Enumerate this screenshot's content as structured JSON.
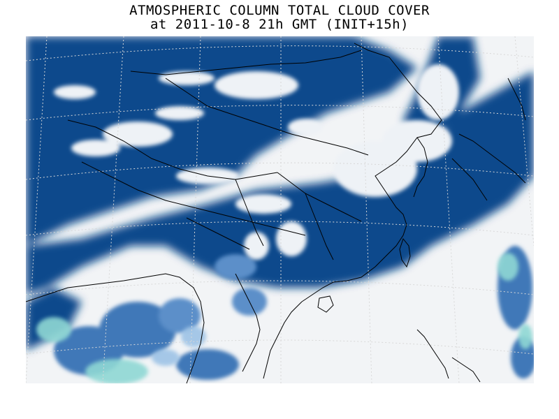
{
  "header": {
    "title_line1": "ATMOSPHERIC COLUMN TOTAL CLOUD COVER",
    "title_line2": "at 2011-10-8 21h GMT (INIT+15h)"
  },
  "map": {
    "colors": {
      "cloud_dense": "#0e4a8c",
      "cloud_medium": "#3f78b8",
      "cloud_light": "#9dc3e6",
      "cloud_edge": "#8fd8d4",
      "clear": "#f2f4f6",
      "coastline": "#000000",
      "graticule": "#d8d8d8"
    }
  }
}
